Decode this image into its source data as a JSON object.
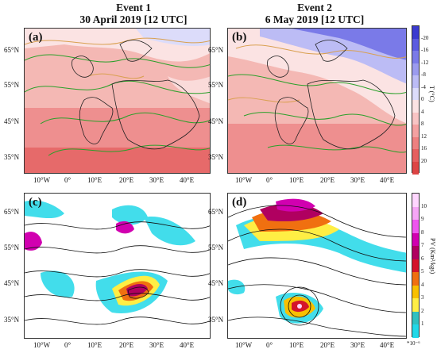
{
  "titles": [
    {
      "line1": "Event 1",
      "line2": "30 April 2019 [12 UTC]"
    },
    {
      "line1": "Event 2",
      "line2": "6 May 2019 [12 UTC]"
    }
  ],
  "panel_labels": [
    "(a)",
    "(b)",
    "(c)",
    "(d)"
  ],
  "lat_ticks": [
    "65°N",
    "55°N",
    "45°N",
    "35°N"
  ],
  "lon_ticks": [
    "10°W",
    "0°",
    "10°E",
    "20°E",
    "30°E",
    "40°E"
  ],
  "colorbar_top": {
    "title": "T (°C)",
    "ticks": [
      "-20",
      "-16",
      "-12",
      "-8",
      "-4",
      "0",
      "4",
      "8",
      "12",
      "16",
      "20"
    ],
    "colors": [
      "#3b3bd0",
      "#5b5be0",
      "#7a7ae8",
      "#9b9bee",
      "#bcbcf5",
      "#dcdcfa",
      "#fbe3e3",
      "#f8c4c4",
      "#f4a1a1",
      "#ee8080",
      "#e65f5f",
      "#dd4444"
    ]
  },
  "colorbar_bottom": {
    "title": "PV (Km²/kgs)",
    "ticks": [
      "10",
      "9",
      "8",
      "7",
      "6",
      "5",
      "4",
      "3",
      "2",
      "1"
    ],
    "exponent": "*10⁻⁶",
    "colors": [
      "#ffd6ff",
      "#f6a6f6",
      "#ee55ee",
      "#d100b0",
      "#b00060",
      "#d4142a",
      "#f07010",
      "#f8c000",
      "#ffee44",
      "#30c0c0",
      "#22d8e8"
    ]
  }
}
